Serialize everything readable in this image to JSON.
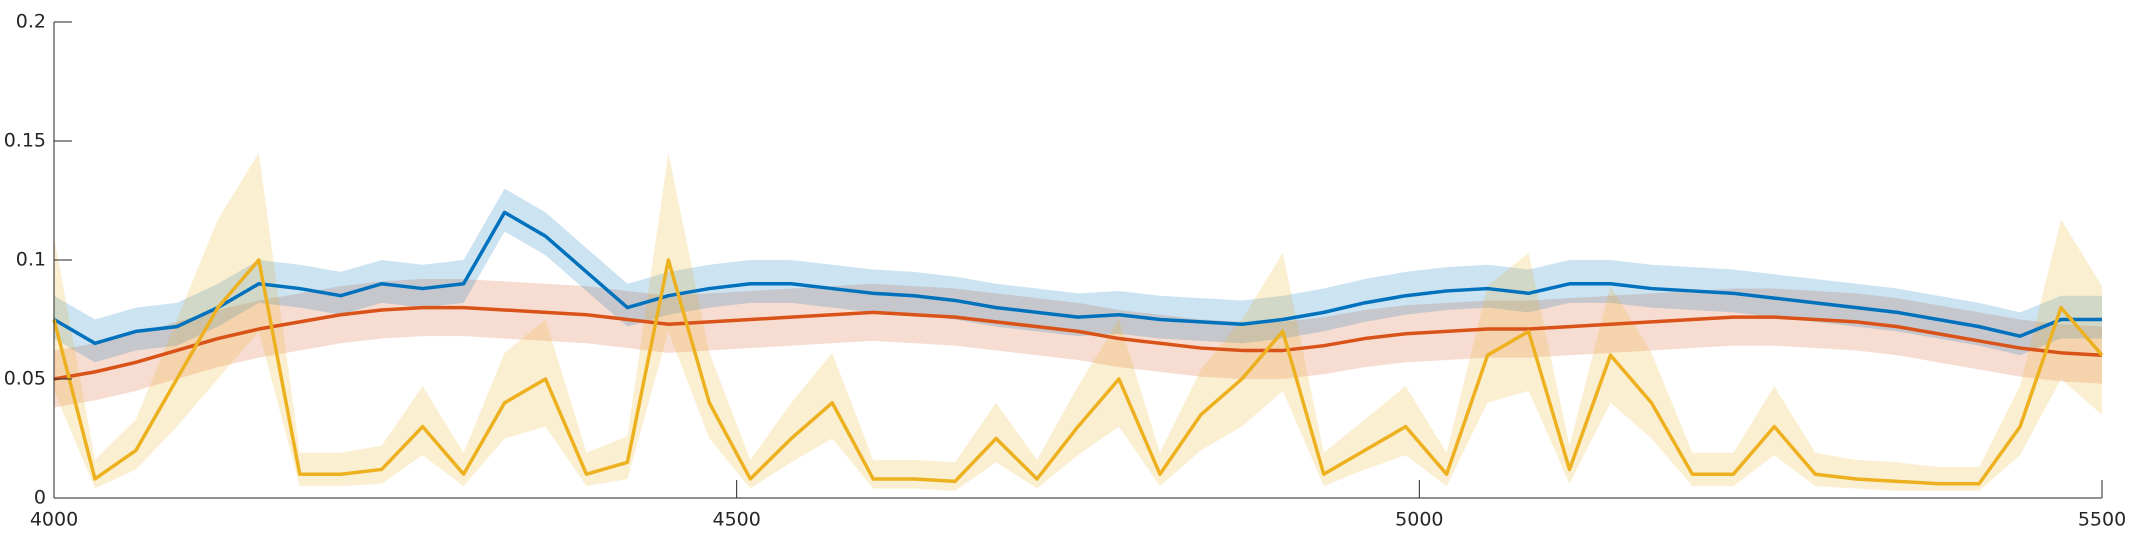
{
  "chart_data": {
    "type": "line",
    "x": [
      4000,
      4030,
      4060,
      4090,
      4120,
      4150,
      4180,
      4210,
      4240,
      4270,
      4300,
      4330,
      4360,
      4390,
      4420,
      4450,
      4480,
      4510,
      4540,
      4570,
      4600,
      4630,
      4660,
      4690,
      4720,
      4750,
      4780,
      4810,
      4840,
      4870,
      4900,
      4930,
      4960,
      4990,
      5020,
      5050,
      5080,
      5110,
      5140,
      5170,
      5200,
      5230,
      5260,
      5290,
      5320,
      5350,
      5380,
      5410,
      5440,
      5470,
      5500
    ],
    "series": [
      {
        "color": "#d95319",
        "values": [
          0.05,
          0.053,
          0.057,
          0.062,
          0.067,
          0.071,
          0.074,
          0.077,
          0.079,
          0.08,
          0.08,
          0.079,
          0.078,
          0.077,
          0.075,
          0.073,
          0.074,
          0.075,
          0.076,
          0.077,
          0.078,
          0.077,
          0.076,
          0.074,
          0.072,
          0.07,
          0.067,
          0.065,
          0.063,
          0.062,
          0.062,
          0.064,
          0.067,
          0.069,
          0.07,
          0.071,
          0.071,
          0.072,
          0.073,
          0.074,
          0.075,
          0.076,
          0.076,
          0.075,
          0.074,
          0.072,
          0.069,
          0.066,
          0.063,
          0.061,
          0.06
        ],
        "lower": [
          0.038,
          0.041,
          0.045,
          0.05,
          0.055,
          0.059,
          0.062,
          0.065,
          0.067,
          0.068,
          0.068,
          0.067,
          0.066,
          0.065,
          0.063,
          0.061,
          0.062,
          0.063,
          0.064,
          0.065,
          0.066,
          0.065,
          0.064,
          0.062,
          0.06,
          0.058,
          0.055,
          0.053,
          0.051,
          0.05,
          0.05,
          0.052,
          0.055,
          0.057,
          0.058,
          0.059,
          0.059,
          0.06,
          0.061,
          0.062,
          0.063,
          0.064,
          0.064,
          0.063,
          0.062,
          0.06,
          0.057,
          0.054,
          0.051,
          0.049,
          0.048
        ],
        "upper": [
          0.062,
          0.065,
          0.069,
          0.074,
          0.079,
          0.083,
          0.086,
          0.089,
          0.091,
          0.092,
          0.092,
          0.091,
          0.09,
          0.089,
          0.087,
          0.085,
          0.086,
          0.087,
          0.088,
          0.089,
          0.09,
          0.089,
          0.088,
          0.086,
          0.084,
          0.082,
          0.079,
          0.077,
          0.075,
          0.074,
          0.074,
          0.076,
          0.079,
          0.081,
          0.082,
          0.083,
          0.083,
          0.084,
          0.085,
          0.086,
          0.087,
          0.088,
          0.088,
          0.087,
          0.086,
          0.084,
          0.081,
          0.078,
          0.075,
          0.073,
          0.072
        ]
      },
      {
        "color": "#0072bd",
        "values": [
          0.075,
          0.065,
          0.07,
          0.072,
          0.08,
          0.09,
          0.088,
          0.085,
          0.09,
          0.088,
          0.09,
          0.12,
          0.11,
          0.095,
          0.08,
          0.085,
          0.088,
          0.09,
          0.09,
          0.088,
          0.086,
          0.085,
          0.083,
          0.08,
          0.078,
          0.076,
          0.077,
          0.075,
          0.074,
          0.073,
          0.075,
          0.078,
          0.082,
          0.085,
          0.087,
          0.088,
          0.086,
          0.09,
          0.09,
          0.088,
          0.087,
          0.086,
          0.084,
          0.082,
          0.08,
          0.078,
          0.075,
          0.072,
          0.068,
          0.075,
          0.075
        ],
        "lower": [
          0.067,
          0.057,
          0.062,
          0.064,
          0.072,
          0.082,
          0.08,
          0.077,
          0.082,
          0.08,
          0.082,
          0.112,
          0.102,
          0.087,
          0.072,
          0.077,
          0.08,
          0.082,
          0.082,
          0.08,
          0.078,
          0.077,
          0.075,
          0.072,
          0.07,
          0.068,
          0.069,
          0.067,
          0.066,
          0.065,
          0.067,
          0.07,
          0.074,
          0.077,
          0.079,
          0.08,
          0.078,
          0.082,
          0.082,
          0.08,
          0.079,
          0.078,
          0.076,
          0.074,
          0.072,
          0.07,
          0.067,
          0.064,
          0.06,
          0.067,
          0.067
        ],
        "upper": [
          0.085,
          0.075,
          0.08,
          0.082,
          0.09,
          0.1,
          0.098,
          0.095,
          0.1,
          0.098,
          0.1,
          0.13,
          0.12,
          0.105,
          0.09,
          0.095,
          0.098,
          0.1,
          0.1,
          0.098,
          0.096,
          0.095,
          0.093,
          0.09,
          0.088,
          0.086,
          0.087,
          0.085,
          0.084,
          0.083,
          0.085,
          0.088,
          0.092,
          0.095,
          0.097,
          0.098,
          0.096,
          0.1,
          0.1,
          0.098,
          0.097,
          0.096,
          0.094,
          0.092,
          0.09,
          0.088,
          0.085,
          0.082,
          0.078,
          0.085,
          0.085
        ]
      },
      {
        "color": "#edb120",
        "values": [
          0.075,
          0.008,
          0.02,
          0.05,
          0.08,
          0.1,
          0.01,
          0.01,
          0.012,
          0.03,
          0.01,
          0.04,
          0.05,
          0.01,
          0.015,
          0.1,
          0.04,
          0.008,
          0.025,
          0.04,
          0.008,
          0.008,
          0.007,
          0.025,
          0.008,
          0.03,
          0.05,
          0.01,
          0.035,
          0.05,
          0.07,
          0.01,
          0.02,
          0.03,
          0.01,
          0.06,
          0.07,
          0.012,
          0.06,
          0.04,
          0.01,
          0.01,
          0.03,
          0.01,
          0.008,
          0.007,
          0.006,
          0.006,
          0.03,
          0.08,
          0.06
        ],
        "lower": [
          0.045,
          0.004,
          0.012,
          0.03,
          0.05,
          0.07,
          0.005,
          0.005,
          0.006,
          0.018,
          0.005,
          0.025,
          0.03,
          0.005,
          0.008,
          0.07,
          0.025,
          0.004,
          0.015,
          0.025,
          0.004,
          0.004,
          0.003,
          0.015,
          0.004,
          0.018,
          0.03,
          0.005,
          0.02,
          0.03,
          0.045,
          0.005,
          0.012,
          0.018,
          0.005,
          0.04,
          0.045,
          0.006,
          0.04,
          0.025,
          0.005,
          0.005,
          0.018,
          0.005,
          0.004,
          0.003,
          0.003,
          0.003,
          0.018,
          0.05,
          0.035
        ],
        "upper": [
          0.11,
          0.016,
          0.033,
          0.075,
          0.117,
          0.145,
          0.019,
          0.019,
          0.022,
          0.047,
          0.019,
          0.061,
          0.075,
          0.019,
          0.026,
          0.145,
          0.061,
          0.016,
          0.04,
          0.061,
          0.016,
          0.016,
          0.015,
          0.04,
          0.016,
          0.047,
          0.075,
          0.019,
          0.054,
          0.075,
          0.103,
          0.019,
          0.033,
          0.047,
          0.019,
          0.089,
          0.103,
          0.022,
          0.089,
          0.061,
          0.019,
          0.019,
          0.047,
          0.019,
          0.016,
          0.015,
          0.013,
          0.013,
          0.047,
          0.117,
          0.089
        ]
      }
    ],
    "xlim": [
      4000,
      5500
    ],
    "xticks": [
      4000,
      4500,
      5000,
      5500
    ],
    "ylim": [
      0,
      0.2
    ],
    "yticks": [
      0,
      0.05,
      0.1,
      0.15,
      0.2
    ]
  }
}
